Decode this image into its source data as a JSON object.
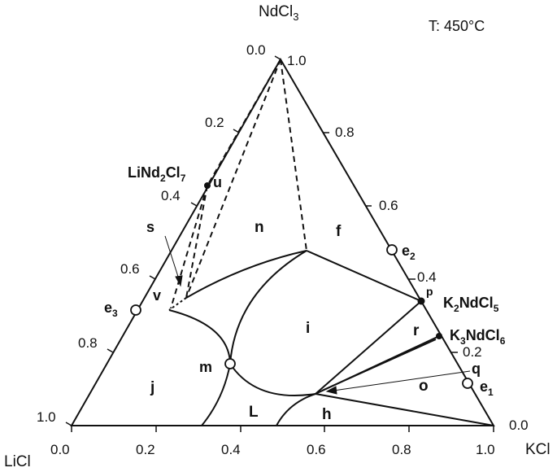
{
  "temperature_label": "T: 450°C",
  "corners": {
    "top": {
      "base": "NdCl",
      "sub": "3"
    },
    "left": "LiCl",
    "right": "KCl"
  },
  "axes": {
    "bottom_ticks": [
      "0.0",
      "0.2",
      "0.4",
      "0.6",
      "0.8",
      "1.0"
    ],
    "left_ticks": [
      "0.0",
      "0.2",
      "0.4",
      "0.6",
      "0.8",
      "1.0"
    ],
    "right_ticks": [
      "1.0",
      "0.8",
      "0.6",
      "0.4",
      "0.2",
      "0.0"
    ]
  },
  "compounds": {
    "li_nd2cl7": {
      "p1": "LiNd",
      "s1": "2",
      "p2": "Cl",
      "s2": "7"
    },
    "k2ndcl5": {
      "p1": "K",
      "s1": "2",
      "p2": "NdCl",
      "s2": "5"
    },
    "k3ndcl6": {
      "p1": "K",
      "s1": "3",
      "p2": "NdCl",
      "s2": "6"
    }
  },
  "points": {
    "u": "u",
    "s": "s",
    "v": "v",
    "m": "m",
    "p": "p",
    "q": "q",
    "e1": {
      "base": "e",
      "sub": "1"
    },
    "e2": {
      "base": "e",
      "sub": "2"
    },
    "e3": {
      "base": "e",
      "sub": "3"
    }
  },
  "regions": {
    "n": "n",
    "f": "f",
    "i": "i",
    "r": "r",
    "o": "o",
    "j": "j",
    "L": "L",
    "h": "h"
  }
}
